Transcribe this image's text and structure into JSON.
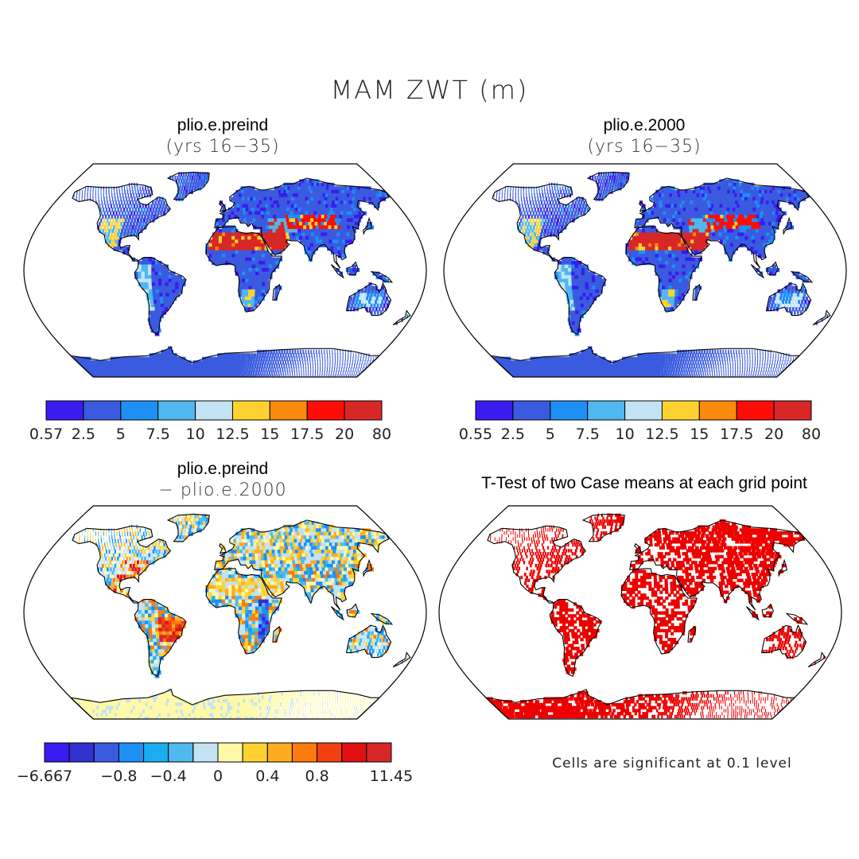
{
  "title": "MAM ZWT (m)",
  "colors": {
    "ocean": "#ffffff",
    "outline": "#000000",
    "significant": "#ee0000"
  },
  "panels": [
    {
      "id": "preind",
      "title": "plio.e.preind",
      "subtitle": "(yrs 16−35)",
      "colorbar": {
        "colors": [
          "#3a1bf0",
          "#3a5be0",
          "#1e8ff5",
          "#4fb8ef",
          "#c3e3f3",
          "#fdd230",
          "#fb8b0c",
          "#fe0d07",
          "#d82727"
        ],
        "labels": [
          "0.57",
          "2.5",
          "5",
          "7.5",
          "10",
          "12.5",
          "15",
          "17.5",
          "20",
          "80"
        ]
      }
    },
    {
      "id": "y2000",
      "title": "plio.e.2000",
      "subtitle": "(yrs 16−35)",
      "colorbar": {
        "colors": [
          "#3a1bf0",
          "#3a5be0",
          "#1e8ff5",
          "#4fb8ef",
          "#c3e3f3",
          "#fdd230",
          "#fb8b0c",
          "#fe0d07",
          "#d82727"
        ],
        "labels": [
          "0.55",
          "2.5",
          "5",
          "7.5",
          "10",
          "12.5",
          "15",
          "17.5",
          "20",
          "80"
        ]
      }
    },
    {
      "id": "diff",
      "title": "plio.e.preind",
      "subtitle": "− plio.e.2000",
      "colorbar": {
        "colors": [
          "#3a1bf0",
          "#3232d0",
          "#3a5be0",
          "#1e8ff5",
          "#1aaef0",
          "#4fb8ef",
          "#c3e3f3",
          "#fff9a8",
          "#fdd230",
          "#fdac20",
          "#fb7b0c",
          "#f44010",
          "#e01010",
          "#d82727"
        ],
        "labels": [
          "−6.667",
          "−0.8",
          "−0.4",
          "0",
          "0.4",
          "0.8",
          "11.45"
        ]
      }
    },
    {
      "id": "ttest",
      "title": "T-Test of two Case means at each grid point",
      "note": "Cells are significant at 0.1 level"
    }
  ]
}
